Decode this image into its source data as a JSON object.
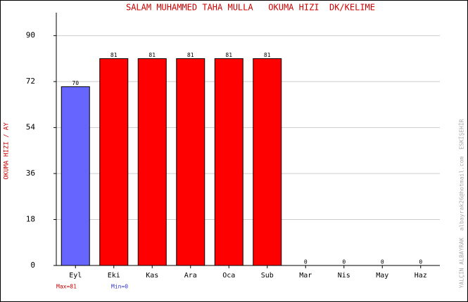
{
  "chart_data": {
    "type": "bar",
    "title": "SALAM MUHAMMED TAHA MULLA   OKUMA HIZI  DK/KELIME",
    "y_label": "OKUMA HIZI / AY",
    "side_note": "YALÇIN ALBAYRAK  albayrak26@hotmail.com  ESKİŞEHİR",
    "max_label": "Max=81",
    "min_label": "Min=0",
    "categories": [
      "Eyl",
      "Eki",
      "Kas",
      "Ara",
      "Oca",
      "Sub",
      "Mar",
      "Nis",
      "May",
      "Haz"
    ],
    "values": [
      70,
      81,
      81,
      81,
      81,
      81,
      0,
      0,
      0,
      0
    ],
    "colors": [
      "#6666ff",
      "#ff0000",
      "#ff0000",
      "#ff0000",
      "#ff0000",
      "#ff0000",
      "#ff0000",
      "#ff0000",
      "#ff0000",
      "#ff0000"
    ],
    "ylim": [
      0,
      99
    ],
    "yticks": [
      0,
      18,
      36,
      54,
      72,
      90
    ],
    "grid": true
  }
}
